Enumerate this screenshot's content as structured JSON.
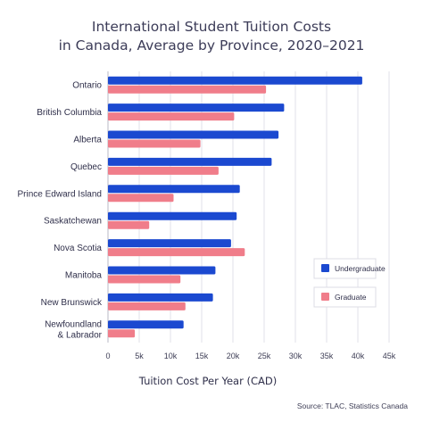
{
  "chart_data": {
    "type": "bar",
    "orientation": "horizontal",
    "title_lines": [
      "International Student Tuition Costs",
      "in Canada, Average by Province, 2020–2021"
    ],
    "categories": [
      "Ontario",
      "British Columbia",
      "Alberta",
      "Quebec",
      "Prince Edward Island",
      "Saskatchewan",
      "Nova Scotia",
      "Manitoba",
      "New Brunswick",
      "Newfoundland & Labrador"
    ],
    "category_lines": [
      [
        "Ontario"
      ],
      [
        "British Columbia"
      ],
      [
        "Alberta"
      ],
      [
        "Quebec"
      ],
      [
        "Prince Edward Island"
      ],
      [
        "Saskatchewan"
      ],
      [
        "Nova Scotia"
      ],
      [
        "Manitoba"
      ],
      [
        "New Brunswick"
      ],
      [
        "Newfoundland",
        "& Labrador"
      ]
    ],
    "series": [
      {
        "name": "Undergraduate",
        "color": "#1b49d0",
        "values": [
          40700,
          28200,
          27300,
          26200,
          21100,
          20600,
          19700,
          17200,
          16800,
          12100
        ]
      },
      {
        "name": "Graduate",
        "color": "#f07d8a",
        "values": [
          25300,
          20200,
          14800,
          17700,
          10500,
          6600,
          21900,
          11600,
          12400,
          4300
        ]
      }
    ],
    "xlabel": "Tuition Cost Per Year (CAD)",
    "xlim": [
      0,
      45000
    ],
    "xticks": [
      0,
      5000,
      10000,
      15000,
      20000,
      25000,
      30000,
      35000,
      40000,
      45000
    ],
    "xtick_labels": [
      "0",
      "5k",
      "10k",
      "15k",
      "20k",
      "25k",
      "30k",
      "35k",
      "40k",
      "45k"
    ],
    "grid": "vertical",
    "legend_position": "right",
    "source": "Source: TLAC, Statistics Canada"
  }
}
